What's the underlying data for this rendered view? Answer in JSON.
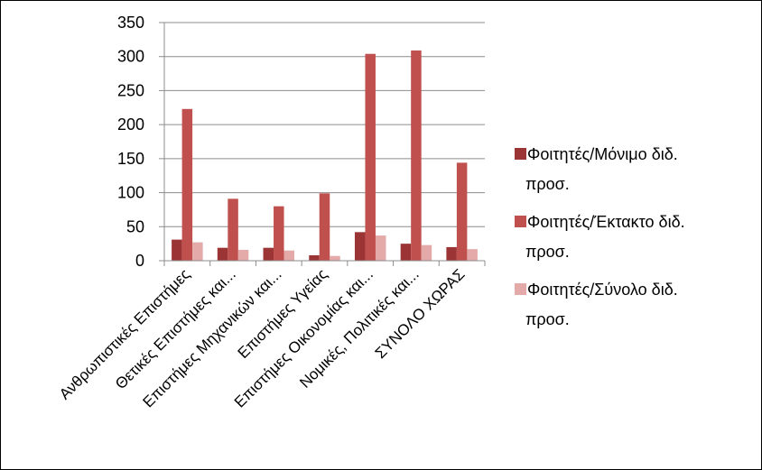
{
  "chart_data": {
    "type": "bar",
    "categories": [
      "Ανθρωπιστικές Επιστήμες",
      "Θετικές Επιστήμες και...",
      "Επιστήμες Μηχανικών και...",
      "Επιστήμες Υγείας",
      "Επιστήμες Οικονομίας και...",
      "Νομικές, Πολιτικές και...",
      "ΣΥΝΟΛΟ ΧΩΡΑΣ"
    ],
    "series": [
      {
        "name": "Φοιτητές/Μόνιμο διδ. προσ.",
        "name_lines": [
          "Φοιτητές/Μόνιμο διδ.",
          "προσ."
        ],
        "color": "#9b3535",
        "values": [
          31,
          19,
          19,
          8,
          42,
          25,
          20
        ]
      },
      {
        "name": "Φοιτητές/Έκτακτο διδ. προσ.",
        "name_lines": [
          "Φοιτητές/Έκτακτο διδ.",
          "προσ."
        ],
        "color": "#c0504d",
        "values": [
          223,
          91,
          80,
          99,
          304,
          309,
          144
        ]
      },
      {
        "name": "Φοιτητές/Σύνολο διδ. προσ.",
        "name_lines": [
          "Φοιτητές/Σύνολο διδ.",
          "προσ."
        ],
        "color": "#e4a9a9",
        "values": [
          27,
          16,
          15,
          7,
          37,
          23,
          17
        ]
      }
    ],
    "y_ticks": [
      "0",
      "50",
      "100",
      "150",
      "200",
      "250",
      "300",
      "350"
    ],
    "ylim": [
      0,
      350
    ],
    "grid": true,
    "legend_position": "right",
    "title": "",
    "xlabel": "",
    "ylabel": ""
  }
}
